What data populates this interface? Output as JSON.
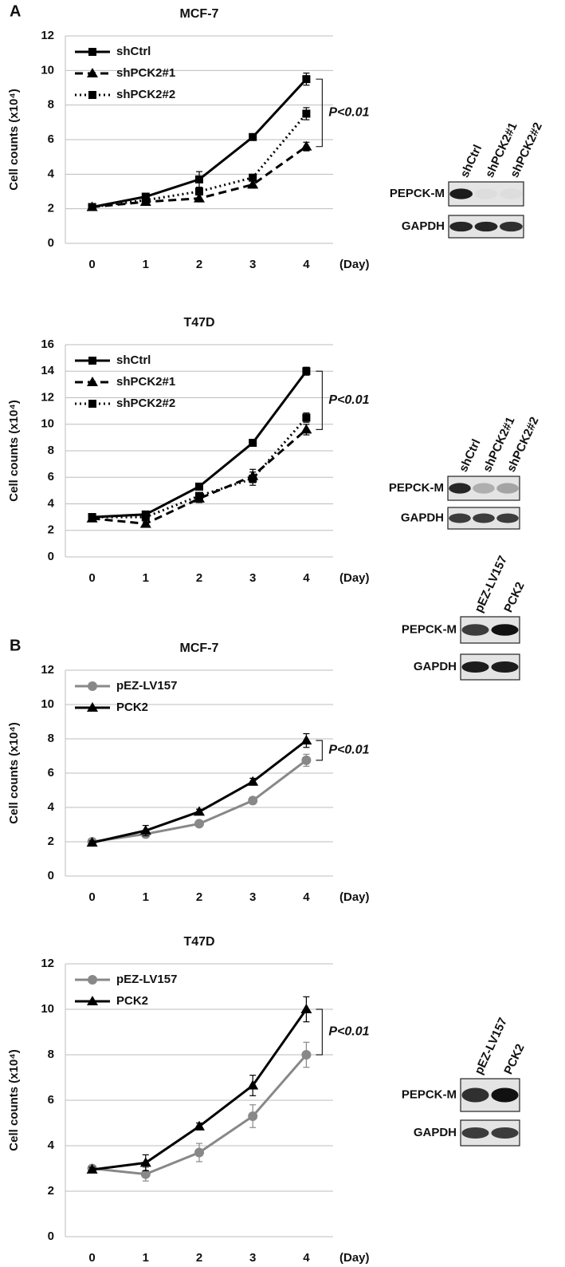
{
  "chart_data": [
    {
      "type": "line",
      "panel": "A",
      "title": "MCF-7",
      "ylabel": "Cell counts (x10⁴)",
      "xlabel": "(Day)",
      "x": [
        0,
        1,
        2,
        3,
        4
      ],
      "xlim": [
        -0.5,
        4.5
      ],
      "xticks": [
        0,
        1,
        2,
        3,
        4
      ],
      "ylim": [
        0,
        12
      ],
      "yticks": [
        0,
        2,
        4,
        6,
        8,
        10,
        12
      ],
      "grid": true,
      "legend": "upper left",
      "annotation": "P<0.01",
      "series": [
        {
          "name": "shCtrl",
          "color": "#000000",
          "dash": "solid",
          "marker": "square",
          "values": [
            2.1,
            2.7,
            3.7,
            6.15,
            9.5
          ],
          "errors": [
            0.1,
            0.15,
            0.45,
            0.1,
            0.35
          ]
        },
        {
          "name": "shPCK2#1",
          "color": "#000000",
          "dash": "dashed",
          "marker": "triangle",
          "values": [
            2.1,
            2.4,
            2.6,
            3.4,
            5.6
          ],
          "errors": [
            0.1,
            0.2,
            0.2,
            0.2,
            0.25
          ]
        },
        {
          "name": "shPCK2#2",
          "color": "#000000",
          "dash": "dotted",
          "marker": "square",
          "values": [
            2.1,
            2.5,
            3.0,
            3.8,
            7.5
          ],
          "errors": [
            0.1,
            0.15,
            0.2,
            0.15,
            0.35
          ]
        }
      ],
      "blot": {
        "lanes": [
          "shCtrl",
          "shPCK2#1",
          "shPCK2#2"
        ],
        "rows": [
          "PEPCK-M",
          "GAPDH"
        ]
      }
    },
    {
      "type": "line",
      "title": "T47D",
      "ylabel": "Cell counts (x10⁴)",
      "xlabel": "(Day)",
      "x": [
        0,
        1,
        2,
        3,
        4
      ],
      "xlim": [
        -0.5,
        4.5
      ],
      "xticks": [
        0,
        1,
        2,
        3,
        4
      ],
      "ylim": [
        0,
        16
      ],
      "yticks": [
        0,
        2,
        4,
        6,
        8,
        10,
        12,
        14,
        16
      ],
      "grid": true,
      "legend": "upper left",
      "annotation": "P<0.01",
      "series": [
        {
          "name": "shCtrl",
          "color": "#000000",
          "dash": "solid",
          "marker": "square",
          "values": [
            3.0,
            3.2,
            5.3,
            8.6,
            14.0
          ],
          "errors": [
            0.1,
            0.15,
            0.2,
            0.1,
            0.3
          ]
        },
        {
          "name": "shPCK2#1",
          "color": "#000000",
          "dash": "dashed",
          "marker": "triangle",
          "values": [
            2.9,
            2.5,
            4.4,
            6.1,
            9.6
          ],
          "errors": [
            0.1,
            0.15,
            0.3,
            0.5,
            0.4
          ]
        },
        {
          "name": "shPCK2#2",
          "color": "#000000",
          "dash": "dotted",
          "marker": "square",
          "values": [
            3.0,
            3.0,
            4.6,
            5.9,
            10.5
          ],
          "errors": [
            0.1,
            0.1,
            0.25,
            0.5,
            0.35
          ]
        }
      ],
      "blot": {
        "lanes": [
          "shCtrl",
          "shPCK2#1",
          "shPCK2#2"
        ],
        "rows": [
          "PEPCK-M",
          "GAPDH"
        ]
      }
    },
    {
      "type": "line",
      "panel": "B",
      "title": "MCF-7",
      "ylabel": "Cell counts (x10⁴)",
      "xlabel": "(Day)",
      "x": [
        0,
        1,
        2,
        3,
        4
      ],
      "xlim": [
        -0.5,
        4.5
      ],
      "xticks": [
        0,
        1,
        2,
        3,
        4
      ],
      "ylim": [
        0,
        12
      ],
      "yticks": [
        0,
        2,
        4,
        6,
        8,
        10,
        12
      ],
      "grid": true,
      "legend": "upper left",
      "annotation": "P<0.01",
      "series": [
        {
          "name": "pEZ-LV157",
          "color": "#888888",
          "dash": "solid",
          "marker": "circle",
          "values": [
            2.0,
            2.45,
            3.05,
            4.4,
            6.75
          ],
          "errors": [
            0.1,
            0.2,
            0.15,
            0.2,
            0.35
          ]
        },
        {
          "name": "PCK2",
          "color": "#000000",
          "dash": "solid",
          "marker": "triangle",
          "values": [
            1.95,
            2.65,
            3.75,
            5.5,
            7.9
          ],
          "errors": [
            0.1,
            0.3,
            0.15,
            0.2,
            0.4
          ]
        }
      ],
      "blot": {
        "lanes": [
          "pEZ-LV157",
          "PCK2"
        ],
        "rows": [
          "PEPCK-M",
          "GAPDH"
        ]
      }
    },
    {
      "type": "line",
      "title": "T47D",
      "ylabel": "Cell counts (x10⁴)",
      "xlabel": "(Day)",
      "x": [
        0,
        1,
        2,
        3,
        4
      ],
      "xlim": [
        -0.5,
        4.5
      ],
      "xticks": [
        0,
        1,
        2,
        3,
        4
      ],
      "ylim": [
        0,
        12
      ],
      "yticks": [
        0,
        2,
        4,
        6,
        8,
        10,
        12
      ],
      "grid": true,
      "legend": "upper left",
      "annotation": "P<0.01",
      "series": [
        {
          "name": "pEZ-LV157",
          "color": "#888888",
          "dash": "solid",
          "marker": "circle",
          "values": [
            3.0,
            2.75,
            3.7,
            5.3,
            8.0
          ],
          "errors": [
            0.1,
            0.3,
            0.4,
            0.5,
            0.55
          ]
        },
        {
          "name": "PCK2",
          "color": "#000000",
          "dash": "solid",
          "marker": "triangle",
          "values": [
            2.95,
            3.25,
            4.85,
            6.65,
            10.0
          ],
          "errors": [
            0.1,
            0.35,
            0.15,
            0.45,
            0.55
          ]
        }
      ],
      "blot": {
        "lanes": [
          "pEZ-LV157",
          "PCK2"
        ],
        "rows": [
          "PEPCK-M",
          "GAPDH"
        ]
      }
    }
  ]
}
